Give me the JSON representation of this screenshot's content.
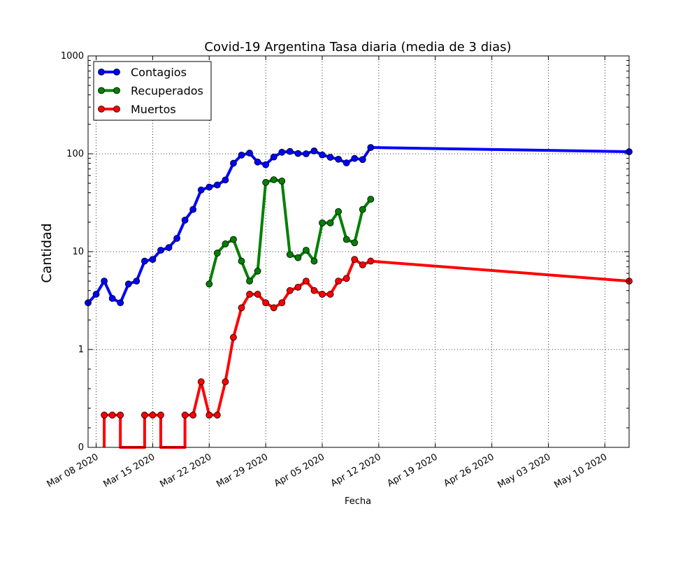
{
  "chart_data": {
    "type": "line",
    "title": "Covid-19 Argentina Tasa diaria (media de 3 dias)",
    "xlabel": "Fecha",
    "ylabel": "Cantidad",
    "yscale": "symlog",
    "ylim": [
      0,
      1000
    ],
    "xlim": [
      "2020-03-07",
      "2020-05-13"
    ],
    "grid": true,
    "legend_position": "top-left",
    "x_ticks": [
      {
        "date": "2020-03-08",
        "label": "Mar 08 2020"
      },
      {
        "date": "2020-03-15",
        "label": "Mar 15 2020"
      },
      {
        "date": "2020-03-22",
        "label": "Mar 22 2020"
      },
      {
        "date": "2020-03-29",
        "label": "Mar 29 2020"
      },
      {
        "date": "2020-04-05",
        "label": "Apr 05 2020"
      },
      {
        "date": "2020-04-12",
        "label": "Apr 12 2020"
      },
      {
        "date": "2020-04-19",
        "label": "Apr 19 2020"
      },
      {
        "date": "2020-04-26",
        "label": "Apr 26 2020"
      },
      {
        "date": "2020-05-03",
        "label": "May 03 2020"
      },
      {
        "date": "2020-05-10",
        "label": "May 10 2020"
      }
    ],
    "y_ticks": [
      {
        "value": 0,
        "label": "0"
      },
      {
        "value": 1,
        "label": "1"
      },
      {
        "value": 10,
        "label": "10"
      },
      {
        "value": 100,
        "label": "100"
      },
      {
        "value": 1000,
        "label": "1000"
      }
    ],
    "series": [
      {
        "name": "Contagios",
        "color": "#0000ff",
        "points": [
          [
            "2020-03-07",
            3.0
          ],
          [
            "2020-03-08",
            3.67
          ],
          [
            "2020-03-09",
            5.0
          ],
          [
            "2020-03-10",
            3.33
          ],
          [
            "2020-03-11",
            3.0
          ],
          [
            "2020-03-12",
            4.67
          ],
          [
            "2020-03-13",
            5.0
          ],
          [
            "2020-03-14",
            8.0
          ],
          [
            "2020-03-15",
            8.33
          ],
          [
            "2020-03-16",
            10.33
          ],
          [
            "2020-03-17",
            11.0
          ],
          [
            "2020-03-18",
            13.67
          ],
          [
            "2020-03-19",
            21.0
          ],
          [
            "2020-03-20",
            27.0
          ],
          [
            "2020-03-21",
            42.67
          ],
          [
            "2020-03-22",
            45.67
          ],
          [
            "2020-03-23",
            48.0
          ],
          [
            "2020-03-24",
            54.0
          ],
          [
            "2020-03-25",
            80.0
          ],
          [
            "2020-03-26",
            97.0
          ],
          [
            "2020-03-27",
            101.67
          ],
          [
            "2020-03-28",
            82.33
          ],
          [
            "2020-03-29",
            77.33
          ],
          [
            "2020-03-30",
            92.67
          ],
          [
            "2020-03-31",
            103.67
          ],
          [
            "2020-04-01",
            105.67
          ],
          [
            "2020-04-02",
            100.67
          ],
          [
            "2020-04-03",
            100.0
          ],
          [
            "2020-04-04",
            107.0
          ],
          [
            "2020-04-05",
            97.33
          ],
          [
            "2020-04-06",
            92.0
          ],
          [
            "2020-04-07",
            88.0
          ],
          [
            "2020-04-08",
            80.67
          ],
          [
            "2020-04-09",
            89.67
          ],
          [
            "2020-04-10",
            87.33
          ],
          [
            "2020-04-11",
            116.0
          ],
          [
            "2020-05-13",
            105.0
          ]
        ]
      },
      {
        "name": "Recuperados",
        "color": "#008000",
        "points": [
          [
            "2020-03-22",
            4.67
          ],
          [
            "2020-03-23",
            9.67
          ],
          [
            "2020-03-24",
            12.0
          ],
          [
            "2020-03-25",
            13.33
          ],
          [
            "2020-03-26",
            8.0
          ],
          [
            "2020-03-27",
            5.0
          ],
          [
            "2020-03-28",
            6.33
          ],
          [
            "2020-03-29",
            51.0
          ],
          [
            "2020-03-30",
            54.33
          ],
          [
            "2020-03-31",
            52.67
          ],
          [
            "2020-04-01",
            9.33
          ],
          [
            "2020-04-02",
            8.67
          ],
          [
            "2020-04-03",
            10.33
          ],
          [
            "2020-04-04",
            8.0
          ],
          [
            "2020-04-05",
            19.67
          ],
          [
            "2020-04-06",
            19.67
          ],
          [
            "2020-04-07",
            25.67
          ],
          [
            "2020-04-08",
            13.33
          ],
          [
            "2020-04-09",
            12.33
          ],
          [
            "2020-04-10",
            27.0
          ],
          [
            "2020-04-11",
            34.33
          ]
        ]
      },
      {
        "name": "Muertos",
        "color": "#ff0000",
        "points": [
          [
            "2020-03-09",
            0.0
          ],
          [
            "2020-03-09",
            0.33
          ],
          [
            "2020-03-10",
            0.33
          ],
          [
            "2020-03-11",
            0.33
          ],
          [
            "2020-03-11",
            0.0
          ],
          [
            "2020-03-14",
            0.0
          ],
          [
            "2020-03-14",
            0.33
          ],
          [
            "2020-03-15",
            0.33
          ],
          [
            "2020-03-16",
            0.33
          ],
          [
            "2020-03-16",
            0.0
          ],
          [
            "2020-03-19",
            0.0
          ],
          [
            "2020-03-19",
            0.33
          ],
          [
            "2020-03-20",
            0.33
          ],
          [
            "2020-03-21",
            0.67
          ],
          [
            "2020-03-22",
            0.33
          ],
          [
            "2020-03-23",
            0.33
          ],
          [
            "2020-03-24",
            0.67
          ],
          [
            "2020-03-25",
            1.33
          ],
          [
            "2020-03-26",
            2.67
          ],
          [
            "2020-03-27",
            3.67
          ],
          [
            "2020-03-28",
            3.67
          ],
          [
            "2020-03-29",
            3.0
          ],
          [
            "2020-03-30",
            2.67
          ],
          [
            "2020-03-31",
            3.0
          ],
          [
            "2020-04-01",
            4.0
          ],
          [
            "2020-04-02",
            4.33
          ],
          [
            "2020-04-03",
            5.0
          ],
          [
            "2020-04-04",
            4.0
          ],
          [
            "2020-04-05",
            3.67
          ],
          [
            "2020-04-06",
            3.67
          ],
          [
            "2020-04-07",
            5.0
          ],
          [
            "2020-04-08",
            5.33
          ],
          [
            "2020-04-09",
            8.33
          ],
          [
            "2020-04-10",
            7.33
          ],
          [
            "2020-04-11",
            8.0
          ],
          [
            "2020-05-13",
            5.0
          ]
        ]
      }
    ]
  }
}
